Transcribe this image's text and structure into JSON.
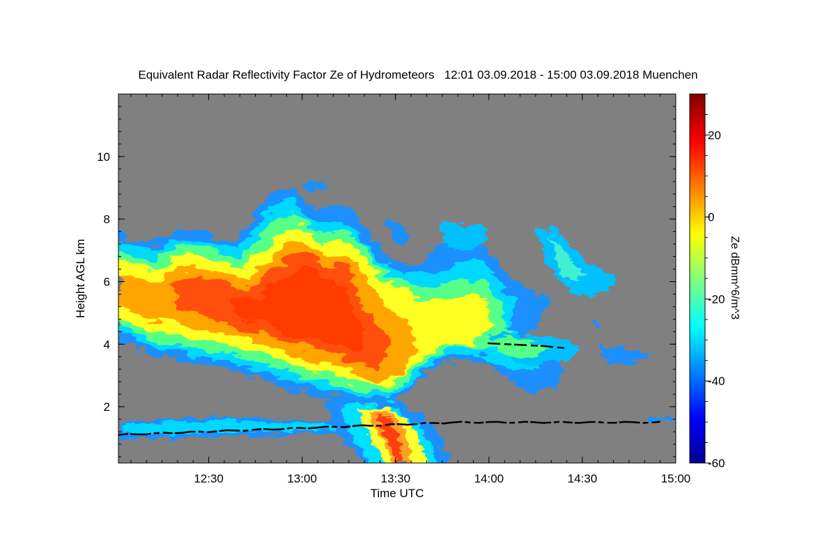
{
  "chart_data": {
    "type": "heatmap",
    "title": "Equivalent Radar Reflectivity Factor Ze of Hydrometeors   12:01 03.09.2018 - 15:00 03.09.2018 Muenchen",
    "xlabel": "Time UTC",
    "ylabel": "Height AGL km",
    "x_range": [
      "12:01",
      "15:00"
    ],
    "y_range": [
      0.2,
      12
    ],
    "x_ticks": [
      "12:30",
      "13:00",
      "13:30",
      "14:00",
      "14:30",
      "15:00"
    ],
    "y_ticks": [
      2,
      4,
      6,
      8,
      10
    ],
    "background_color": "#808080",
    "colorbar": {
      "label": "Ze dBmm^6/m^3",
      "range": [
        -60,
        30
      ],
      "ticks": [
        20,
        0,
        -20,
        -40,
        -60
      ],
      "colormap": "jet"
    },
    "regions": [
      {
        "description": "main_cloud",
        "time_start": "12:01",
        "time_end": "14:20",
        "base_km": 3.5,
        "top_km": 9.0,
        "ze_max": 20
      },
      {
        "description": "low_layer",
        "time_start": "12:01",
        "time_end": "13:45",
        "base_km": 1.2,
        "top_km": 1.7,
        "ze_max": -30
      },
      {
        "description": "precipitation_shaft",
        "time_start": "13:20",
        "time_end": "13:45",
        "base_km": 0.2,
        "top_km": 2.5,
        "ze_max": 20
      },
      {
        "description": "eastern_cells",
        "time_start": "14:00",
        "time_end": "14:55",
        "base_km": 3.6,
        "top_km": 7.0,
        "ze_max": -20
      }
    ],
    "black_line": {
      "description": "boundary_layer_height",
      "time_start": "12:01",
      "time_end": "14:55",
      "height_km_start": 1.1,
      "height_km_end": 1.5
    }
  }
}
